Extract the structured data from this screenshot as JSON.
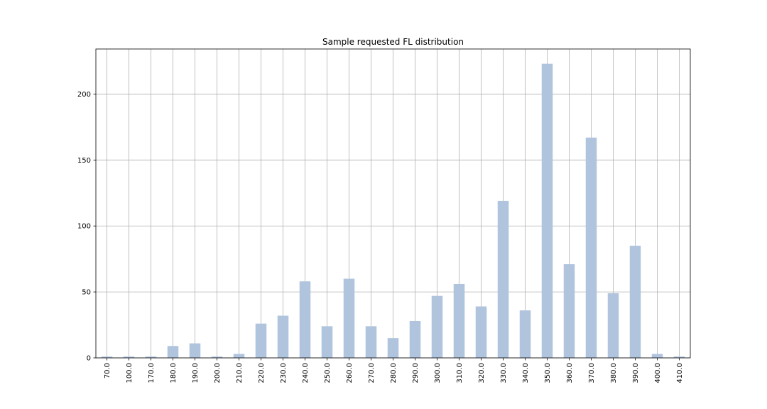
{
  "chart_data": {
    "type": "bar",
    "title": "Sample requested FL distribution",
    "xlabel": "",
    "ylabel": "",
    "categories": [
      "70.0",
      "100.0",
      "170.0",
      "180.0",
      "190.0",
      "200.0",
      "210.0",
      "220.0",
      "230.0",
      "240.0",
      "250.0",
      "260.0",
      "270.0",
      "280.0",
      "290.0",
      "300.0",
      "310.0",
      "320.0",
      "330.0",
      "340.0",
      "350.0",
      "360.0",
      "370.0",
      "380.0",
      "390.0",
      "400.0",
      "410.0"
    ],
    "values": [
      1,
      1,
      1,
      9,
      11,
      1,
      3,
      26,
      32,
      58,
      24,
      60,
      24,
      15,
      28,
      47,
      56,
      39,
      119,
      36,
      223,
      71,
      167,
      49,
      85,
      3,
      1
    ],
    "ylim": [
      0,
      234.15
    ],
    "yticks": [
      0,
      50,
      100,
      150,
      200
    ],
    "grid": true,
    "bar_color": "#b0c4de",
    "grid_color": "#b0b0b0"
  }
}
